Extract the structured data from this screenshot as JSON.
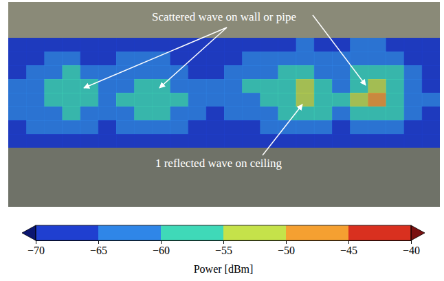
{
  "chart_data": {
    "type": "heatmap",
    "tick_labels": false,
    "annotations": [
      "Scattered wave on wall or pipe",
      "1 reflected wave on ceiling"
    ],
    "cells": [
      [
        -68,
        -67,
        -68,
        -66,
        -67,
        -68,
        -67,
        -66,
        -67,
        -68,
        -69,
        -68,
        -67,
        -66,
        -67,
        -66,
        -65,
        -67,
        -66,
        -65,
        -64,
        -66,
        -68,
        -69
      ],
      [
        -67,
        -66,
        -65,
        -64,
        -66,
        -67,
        -65,
        -64,
        -65,
        -67,
        -68,
        -67,
        -66,
        -65,
        -64,
        -63,
        -62,
        -64,
        -65,
        -63,
        -61,
        -63,
        -66,
        -68
      ],
      [
        -66,
        -64,
        -62,
        -60,
        -63,
        -65,
        -63,
        -61,
        -62,
        -64,
        -66,
        -66,
        -64,
        -63,
        -61,
        -59,
        -58,
        -61,
        -63,
        -60,
        -57,
        -60,
        -64,
        -67
      ],
      [
        -65,
        -62,
        -59,
        -57,
        -60,
        -63,
        -61,
        -58,
        -59,
        -62,
        -65,
        -64,
        -63,
        -60,
        -58,
        -56,
        -55,
        -58,
        -61,
        -57,
        -53,
        -57,
        -62,
        -66
      ],
      [
        -64,
        -61,
        -58,
        -56,
        -59,
        -62,
        -60,
        -57,
        -56,
        -60,
        -64,
        -65,
        -63,
        -61,
        -58,
        -57,
        -54,
        -57,
        -60,
        -55,
        -49,
        -56,
        -61,
        -65
      ],
      [
        -65,
        -63,
        -61,
        -60,
        -62,
        -63,
        -62,
        -60,
        -59,
        -62,
        -65,
        -66,
        -65,
        -63,
        -61,
        -59,
        -58,
        -60,
        -62,
        -59,
        -56,
        -59,
        -63,
        -66
      ],
      [
        -67,
        -65,
        -64,
        -63,
        -64,
        -66,
        -65,
        -64,
        -63,
        -65,
        -67,
        -68,
        -67,
        -66,
        -65,
        -64,
        -63,
        -65,
        -66,
        -64,
        -62,
        -64,
        -66,
        -68
      ],
      [
        -69,
        -68,
        -67,
        -66,
        -67,
        -68,
        -68,
        -67,
        -67,
        -68,
        -69,
        -69,
        -68,
        -68,
        -67,
        -67,
        -66,
        -67,
        -68,
        -67,
        -66,
        -67,
        -68,
        -69
      ]
    ],
    "colorbar": {
      "label": "Power [dBm]",
      "range": [
        -70,
        -40
      ],
      "ticks": [
        {
          "value": -70,
          "label": "−70"
        },
        {
          "value": -65,
          "label": "−65"
        },
        {
          "value": -60,
          "label": "−60"
        },
        {
          "value": -55,
          "label": "−55"
        },
        {
          "value": -50,
          "label": "−50"
        },
        {
          "value": -45,
          "label": "−45"
        },
        {
          "value": -40,
          "label": "−40"
        }
      ],
      "colors": [
        "#1f3fd0",
        "#2f86e8",
        "#3fd9b8",
        "#c5e24a",
        "#f5a031",
        "#d9301f"
      ]
    }
  }
}
